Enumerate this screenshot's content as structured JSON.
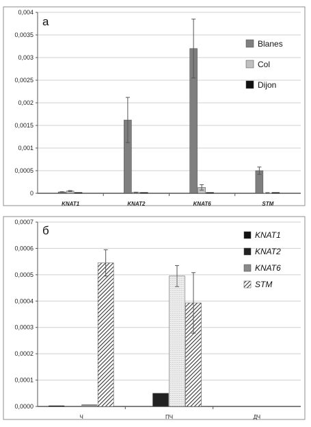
{
  "chart_data": [
    {
      "type": "bar",
      "panel_label": "а",
      "categories": [
        "KNAT1",
        "KNAT2",
        "KNAT6",
        "STM"
      ],
      "ylim": [
        0,
        0.004
      ],
      "yticks": [
        "0",
        "0,0005",
        "0,001",
        "0,0015",
        "0,002",
        "0,0025",
        "0,003",
        "0,0035",
        "0,004"
      ],
      "legend_position": "right",
      "series": [
        {
          "name": "Blanes",
          "color": "#7f7f7f",
          "pattern": "solid",
          "values": [
            3e-05,
            0.00162,
            0.0032,
            0.0005
          ],
          "errors": [
            5e-06,
            0.0005,
            0.00065,
            8e-05
          ]
        },
        {
          "name": "Col",
          "color": "#c0c0c0",
          "pattern": "solid",
          "values": [
            5e-05,
            2e-05,
            0.00013,
            1e-05
          ],
          "errors": [
            1e-05,
            5e-06,
            6e-05,
            5e-06
          ]
        },
        {
          "name": "Dijon",
          "color": "#111111",
          "pattern": "solid",
          "values": [
            2e-05,
            2e-05,
            2e-05,
            2e-05
          ],
          "errors": [
            0,
            0,
            0,
            0
          ]
        }
      ]
    },
    {
      "type": "bar",
      "panel_label": "б",
      "categories": [
        "Ч",
        "ПЧ",
        "ДЧ"
      ],
      "ylim": [
        0,
        0.0007
      ],
      "yticks": [
        "0,0000",
        "0,0001",
        "0,0002",
        "0,0003",
        "0,0004",
        "0,0005",
        "0,0006",
        "0,0007"
      ],
      "legend_position": "right",
      "series": [
        {
          "name": "KNAT1",
          "color": "#111111",
          "pattern": "solid",
          "values": [
            2e-06,
            0.0,
            0.0
          ],
          "errors": [
            0,
            0,
            0
          ]
        },
        {
          "name": "KNAT2",
          "color": "#222222",
          "pattern": "solid",
          "values": [
            0.0,
            5e-05,
            0.0
          ],
          "errors": [
            0,
            0,
            0
          ]
        },
        {
          "name": "KNAT6",
          "color": "#8a8a8a",
          "pattern": "solid",
          "values": [
            8e-06,
            0.000495,
            0.0
          ],
          "errors": [
            0,
            4e-05,
            0
          ]
        },
        {
          "name": "STM",
          "color": "#555555",
          "pattern": "hatch",
          "values": [
            0.000545,
            0.000393,
            0.0
          ],
          "errors": [
            5e-05,
            0.000115,
            0
          ]
        }
      ]
    }
  ]
}
